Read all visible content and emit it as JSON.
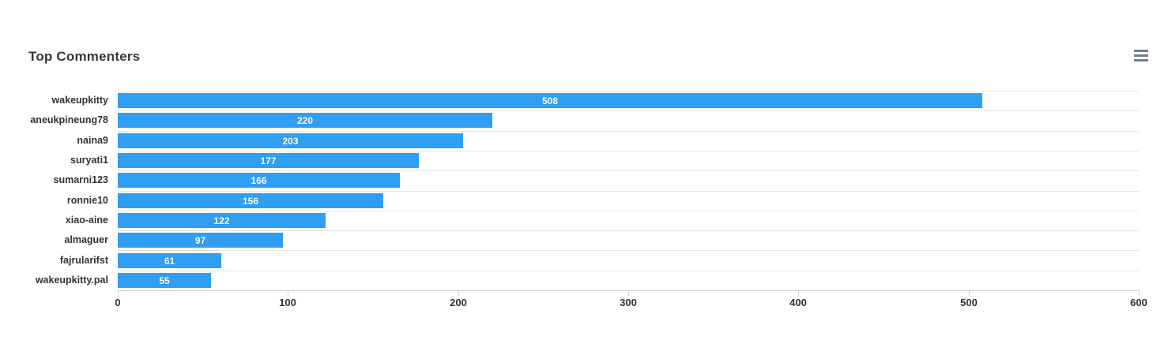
{
  "header": {
    "title": "Top Commenters"
  },
  "menu": {
    "icon": "hamburger-menu-icon"
  },
  "colors": {
    "bar": "#2f9ef3",
    "grid": "#e6e6e6",
    "axis_line": "#ccd2d8",
    "category_label": "#333333",
    "tick_label": "#333333",
    "value_label": "#ffffff",
    "menu_icon": "#6e8094",
    "title": "#36393e",
    "background": "#ffffff"
  },
  "chart_data": {
    "type": "bar",
    "orientation": "horizontal",
    "title": "Top Commenters",
    "categories": [
      "wakeupkitty",
      "aneukpineung78",
      "naina9",
      "suryati1",
      "sumarni123",
      "ronnie10",
      "xiao-aine",
      "almaguer",
      "fajrularifst",
      "wakeupkitty.pal"
    ],
    "values": [
      508,
      220,
      203,
      177,
      166,
      156,
      122,
      97,
      61,
      55
    ],
    "xlabel": "",
    "ylabel": "",
    "xlim": [
      0,
      600
    ],
    "xticks": [
      0,
      100,
      200,
      300,
      400,
      500,
      600
    ],
    "grid": true,
    "legend": false,
    "value_labels": "inside-center"
  }
}
